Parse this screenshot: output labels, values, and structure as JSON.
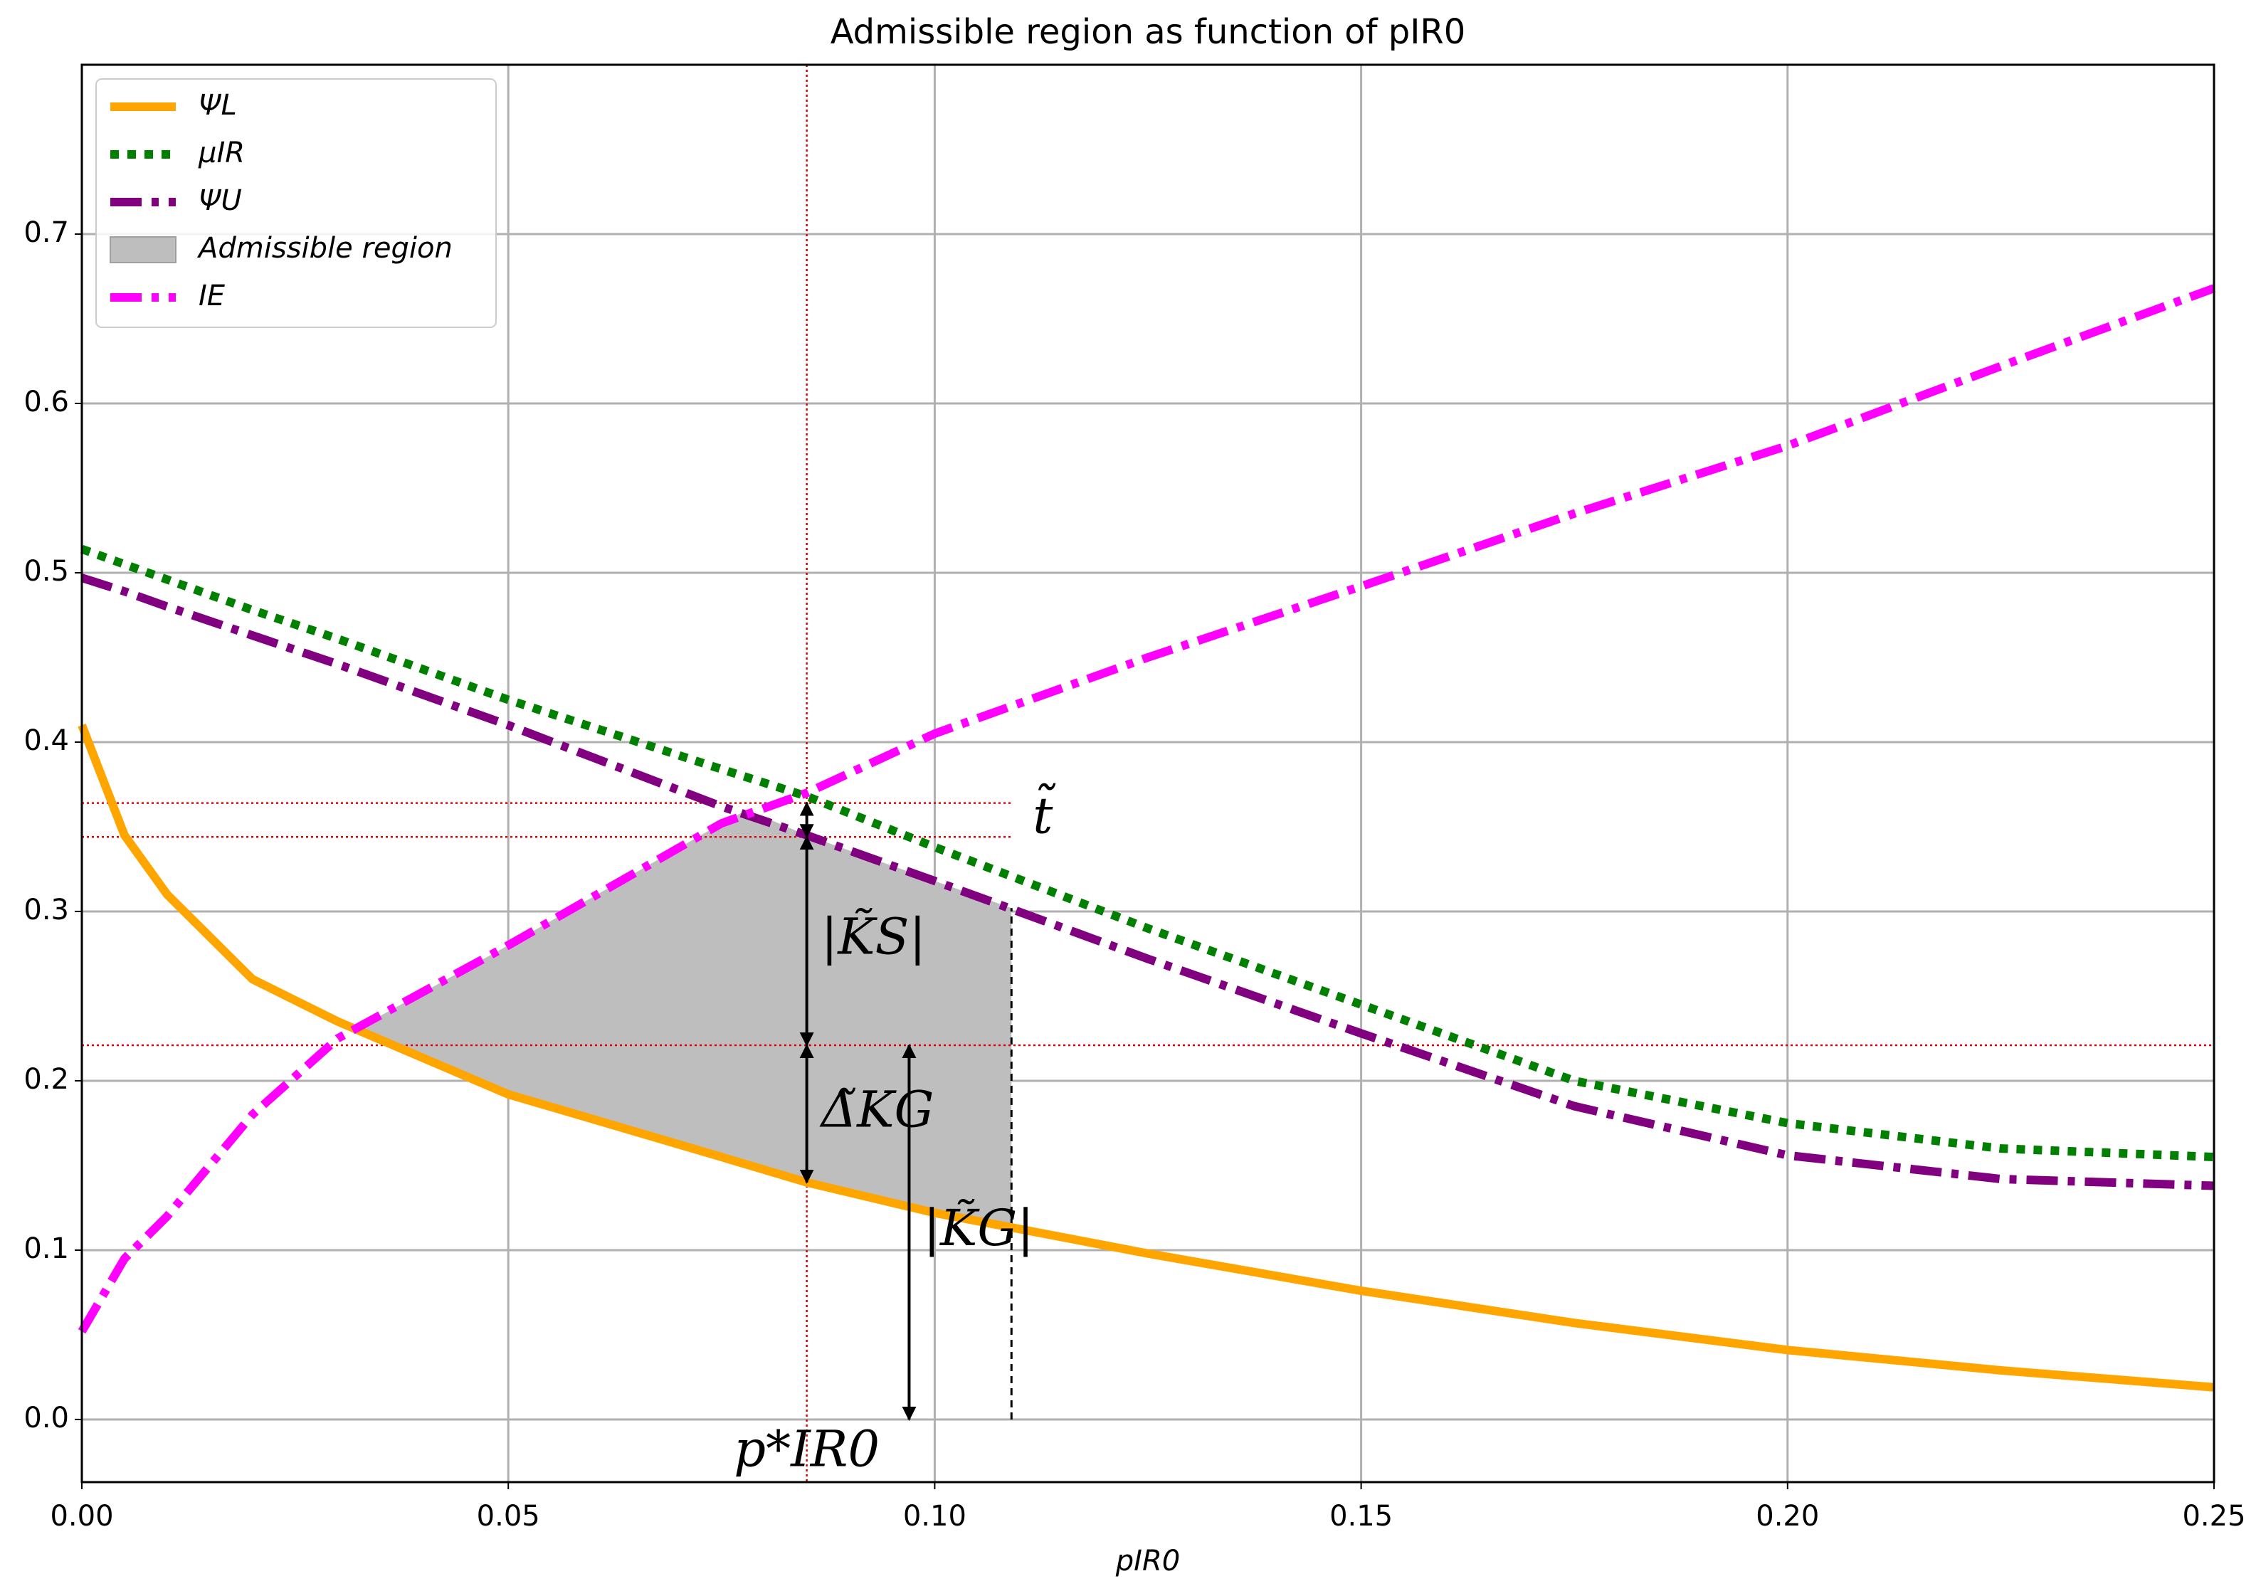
{
  "chart_data": {
    "type": "line",
    "title": "Admissible region as function of pIR0",
    "x_label": "pIR0",
    "xlim": [
      0,
      0.25
    ],
    "ylim": [
      -0.037,
      0.8
    ],
    "xticks": [
      {
        "value": 0,
        "label": "0.00"
      },
      {
        "value": 0.05,
        "label": "0.05"
      },
      {
        "value": 0.1,
        "label": "0.10"
      },
      {
        "value": 0.15,
        "label": "0.15"
      },
      {
        "value": 0.2,
        "label": "0.20"
      },
      {
        "value": 0.25,
        "label": "0.25"
      }
    ],
    "yticks": [
      {
        "value": 0,
        "label": "0.0"
      },
      0.1,
      0.2,
      0.3,
      0.4,
      0.5,
      0.6,
      0.7
    ],
    "grid": true,
    "legend": "upper left",
    "x": [
      0,
      0.005,
      0.01,
      0.02,
      0.03,
      0.05,
      0.075,
      0.085,
      0.1,
      0.125,
      0.15,
      0.175,
      0.2,
      0.225,
      0.25
    ],
    "series": [
      {
        "name": "ΨL",
        "color": "#ffa500",
        "style": "solid",
        "values": [
          0.41,
          0.345,
          0.31,
          0.26,
          0.235,
          0.192,
          0.155,
          0.14,
          0.122,
          0.098,
          0.076,
          0.057,
          0.041,
          0.029,
          0.019
        ]
      },
      {
        "name": "μIR",
        "color": "#007f00",
        "style": "dotted",
        "values": [
          0.514,
          0.505,
          0.496,
          0.478,
          0.461,
          0.425,
          0.384,
          0.368,
          0.338,
          0.29,
          0.245,
          0.2,
          0.175,
          0.16,
          0.155
        ]
      },
      {
        "name": "ΨU",
        "color": "#800080",
        "style": "dashdot",
        "values": [
          0.497,
          0.489,
          0.48,
          0.463,
          0.446,
          0.41,
          0.362,
          0.345,
          0.318,
          0.272,
          0.228,
          0.185,
          0.156,
          0.142,
          0.138
        ]
      },
      {
        "name": "Admissible region",
        "color": "#bebebe",
        "style": "area",
        "x": [
          0.032,
          0.05,
          0.075,
          0.078,
          0.085,
          0.1,
          0.109
        ],
        "lower": [
          0.23,
          0.192,
          0.155,
          0.151,
          0.14,
          0.122,
          0.113
        ],
        "upper": [
          0.23,
          0.28,
          0.352,
          0.36,
          0.345,
          0.318,
          0.302
        ]
      },
      {
        "name": "IE",
        "color": "#ff00ff",
        "style": "dashdot",
        "values": [
          0.052,
          0.095,
          0.12,
          0.18,
          0.225,
          0.28,
          0.352,
          0.37,
          0.405,
          0.45,
          0.492,
          0.535,
          0.575,
          0.622,
          0.668
        ]
      }
    ],
    "hlines": [
      {
        "y": 0.364,
        "from": 0,
        "to": 0.109
      },
      {
        "y": 0.344,
        "from": 0,
        "to": 0.109
      },
      {
        "y": 0.221,
        "from": 0,
        "to": 0.25
      }
    ],
    "vline": {
      "x": 0.085,
      "label": "p*IR0"
    },
    "dashed_line": {
      "x": 0.109,
      "from": 0,
      "to": 0.302
    },
    "arrows": [
      {
        "x": 0.085,
        "from": 0.364,
        "to": 0.344,
        "label": "t̃"
      },
      {
        "x": 0.085,
        "from": 0.344,
        "to": 0.221,
        "label": "|K̃S|"
      },
      {
        "x": 0.085,
        "from": 0.221,
        "to": 0.14,
        "label": "Δ̃KG"
      },
      {
        "x": 0.097,
        "from": 0.221,
        "to": 0,
        "label": "|K̃G|"
      }
    ]
  }
}
